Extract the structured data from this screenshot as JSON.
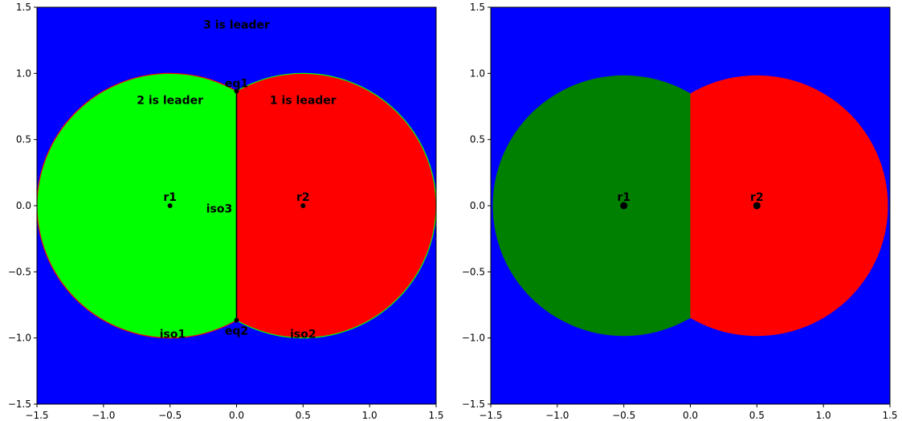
{
  "chart_data": [
    {
      "type": "scatter",
      "title": "",
      "xlabel": "",
      "ylabel": "",
      "xlim": [
        -1.5,
        1.5
      ],
      "ylim": [
        -1.5,
        1.5
      ],
      "grid": false,
      "xticks": [
        "−1.5",
        "−1.0",
        "−0.5",
        "0.0",
        "0.5",
        "1.0",
        "1.5"
      ],
      "yticks": [
        "−1.5",
        "−1.0",
        "−0.5",
        "0.0",
        "0.5",
        "1.0",
        "1.5"
      ],
      "xtick_values": [
        -1.5,
        -1.0,
        -0.5,
        0.0,
        0.5,
        1.0,
        1.5
      ],
      "ytick_values": [
        -1.5,
        -1.0,
        -0.5,
        0.0,
        0.5,
        1.0,
        1.5
      ],
      "colors": {
        "background": "#0000ff",
        "left_region": "#00ff00",
        "right_region": "#ff0000",
        "divider": "#000000"
      },
      "points": [
        {
          "label": "r1",
          "x": -0.5,
          "y": 0.0
        },
        {
          "label": "r2",
          "x": 0.5,
          "y": 0.0
        },
        {
          "label": "eq1",
          "x": 0.0,
          "y": 0.866
        },
        {
          "label": "eq2",
          "x": 0.0,
          "y": -0.866
        }
      ],
      "annotations": [
        {
          "text": "3 is leader",
          "x": 0.0,
          "y": 1.37
        },
        {
          "text": "2 is leader",
          "x": -0.5,
          "y": 0.8
        },
        {
          "text": "1 is leader",
          "x": 0.5,
          "y": 0.8
        },
        {
          "text": "iso3",
          "x": -0.13,
          "y": -0.02
        },
        {
          "text": "iso1",
          "x": -0.48,
          "y": -0.97
        },
        {
          "text": "iso2",
          "x": 0.5,
          "y": -0.97
        }
      ]
    },
    {
      "type": "scatter",
      "title": "",
      "xlabel": "",
      "ylabel": "",
      "xlim": [
        -1.5,
        1.5
      ],
      "ylim": [
        -1.5,
        1.5
      ],
      "grid": false,
      "xticks": [
        "−1.5",
        "−1.0",
        "−0.5",
        "0.0",
        "0.5",
        "1.0",
        "1.5"
      ],
      "yticks": [
        "−1.5",
        "−1.0",
        "−0.5",
        "0.0",
        "0.5",
        "1.0",
        "1.5"
      ],
      "xtick_values": [
        -1.5,
        -1.0,
        -0.5,
        0.0,
        0.5,
        1.0,
        1.5
      ],
      "ytick_values": [
        -1.5,
        -1.0,
        -0.5,
        0.0,
        0.5,
        1.0,
        1.5
      ],
      "colors": {
        "background": "#0000ff",
        "left_region": "#008000",
        "right_region": "#ff0000"
      },
      "points": [
        {
          "label": "r1",
          "x": -0.5,
          "y": 0.0
        },
        {
          "label": "r2",
          "x": 0.5,
          "y": 0.0
        }
      ],
      "annotations": []
    }
  ]
}
